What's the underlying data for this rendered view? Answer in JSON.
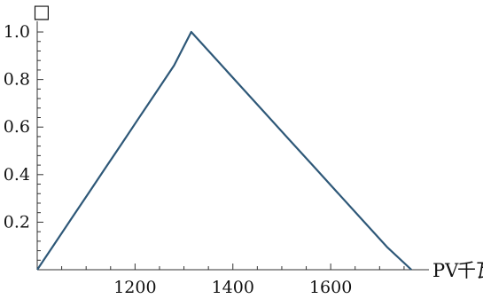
{
  "chart_data": {
    "type": "line",
    "x_axis_label": "PV",
    "x_axis_unit_glyph": "千瓦",
    "y_axis_unit_glyph": "□",
    "xlim": [
      1000,
      1790
    ],
    "ylim": [
      0,
      1.03
    ],
    "x_ticks": [
      1200,
      1400,
      1600
    ],
    "x_tick_labels": [
      "1200",
      "1400",
      "1600"
    ],
    "y_ticks": [
      0.2,
      0.4,
      0.6,
      0.8,
      1.0
    ],
    "y_tick_labels": [
      "0.2",
      "0.4",
      "0.6",
      "0.8",
      "1.0"
    ],
    "series": [
      {
        "color": "#2e5878",
        "x": [
          1000,
          1035,
          1070,
          1105,
          1140,
          1175,
          1210,
          1245,
          1280,
          1315,
          1365,
          1415,
          1465,
          1515,
          1565,
          1615,
          1665,
          1715,
          1765
        ],
        "y": [
          0.0,
          0.107,
          0.215,
          0.322,
          0.43,
          0.537,
          0.645,
          0.752,
          0.86,
          1.0,
          0.887,
          0.774,
          0.661,
          0.548,
          0.435,
          0.322,
          0.209,
          0.096,
          0.0
        ]
      }
    ],
    "grid": false,
    "legend": "none"
  }
}
